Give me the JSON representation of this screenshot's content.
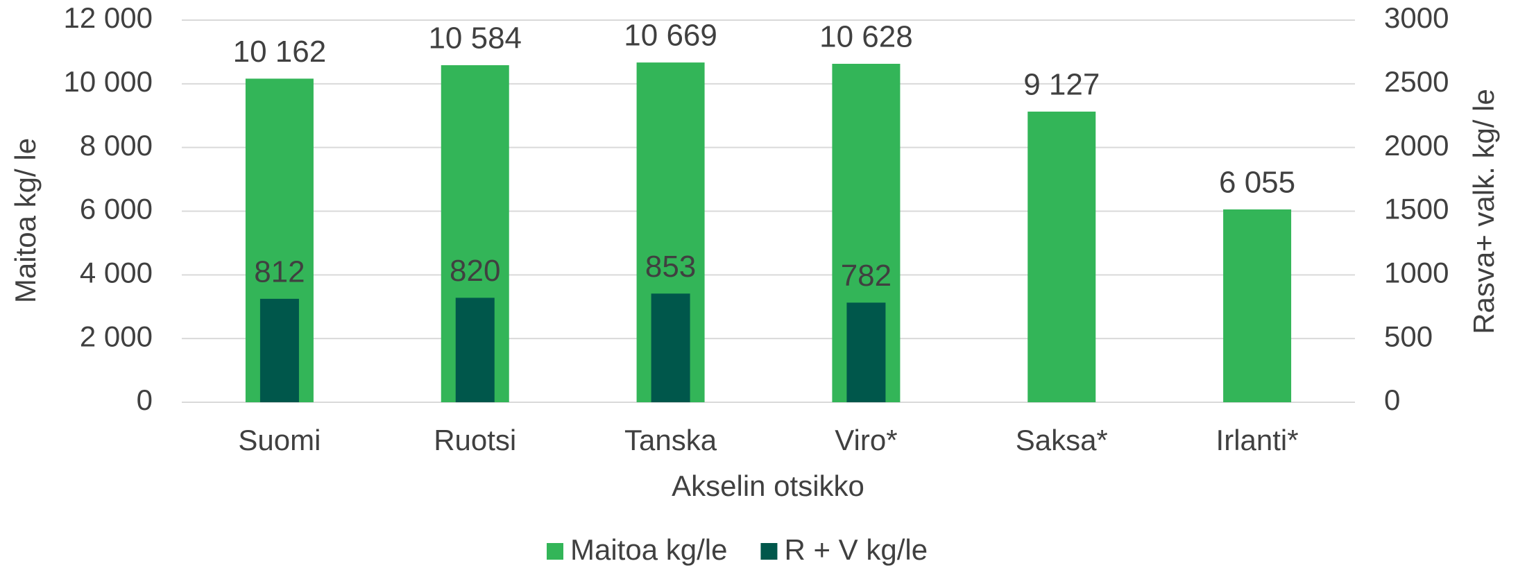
{
  "chart_data": {
    "type": "bar",
    "categories": [
      "Suomi",
      "Ruotsi",
      "Tanska",
      "Viro*",
      "Saksa*",
      "Irlanti*"
    ],
    "series": [
      {
        "name": "Maitoa kg/le",
        "color": "#33b558",
        "values": [
          10162,
          10584,
          10669,
          10628,
          9127,
          6055
        ],
        "value_labels": [
          "10 162",
          "10 584",
          "10 669",
          "10 628",
          "9 127",
          "6 055"
        ]
      },
      {
        "name": "R + V kg/le",
        "color": "#00574b",
        "axis": "y2",
        "values": [
          812,
          820,
          853,
          782,
          null,
          null
        ]
      }
    ],
    "xlabel": "Akselin otsikko",
    "ylabel": "Maitoa kg/ le",
    "y2label": "Rasva+ valk. kg/ le",
    "ylim": [
      0,
      12000
    ],
    "yticks": [
      0,
      {
        "value": 2000,
        "label": "2 000"
      },
      {
        "value": 4000,
        "label": "4 000"
      },
      {
        "value": 6000,
        "label": "6 000"
      },
      {
        "value": 8000,
        "label": "8 000"
      },
      {
        "value": 10000,
        "label": "10 000"
      },
      {
        "value": 12000,
        "label": "12 000"
      }
    ],
    "y2lim": [
      0,
      3000
    ],
    "y2ticks": [
      0,
      500,
      1000,
      1500,
      2000,
      2500,
      3000
    ],
    "grid": true,
    "legend": "bottom"
  }
}
